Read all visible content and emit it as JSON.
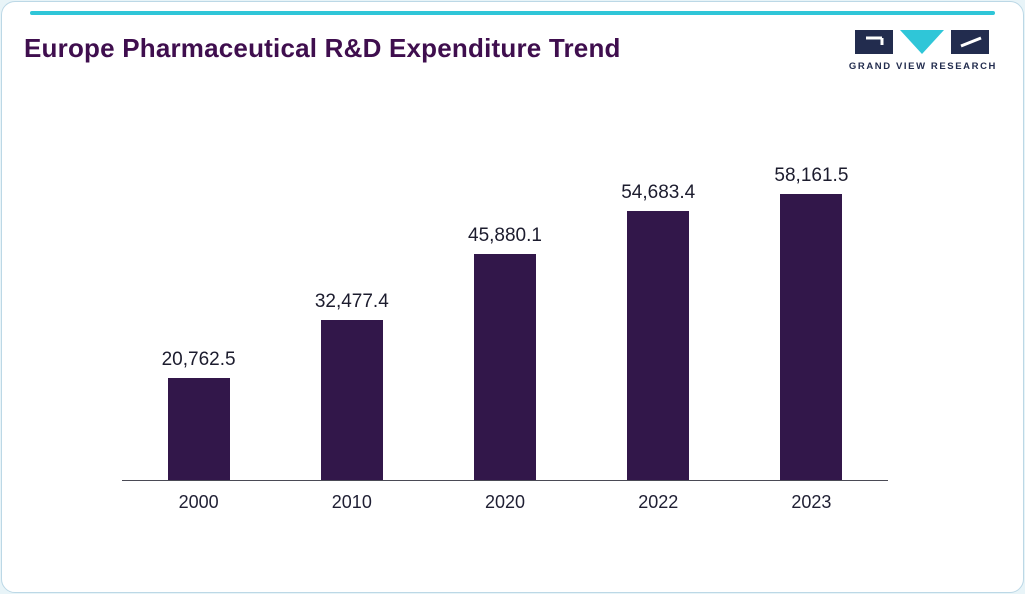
{
  "page": {
    "title": "Europe Pharmaceutical R&D Expenditure Trend"
  },
  "logo": {
    "text": "GRAND VIEW RESEARCH"
  },
  "colors": {
    "background": "#e8f4f8",
    "card": "#ffffff",
    "accent_top": "#2fc6d8",
    "title": "#3f0e4e",
    "bar": "#32174a",
    "axis_line": "#4a4a55",
    "logo_navy": "#222c4e",
    "logo_cyan": "#2fc6d8"
  },
  "chart_data": {
    "type": "bar",
    "title": "Europe Pharmaceutical R&D Expenditure Trend",
    "categories": [
      "2000",
      "2010",
      "2020",
      "2022",
      "2023"
    ],
    "values": [
      20762.5,
      32477.4,
      45880.1,
      54683.4,
      58161.5
    ],
    "value_labels": [
      "20,762.5",
      "32,477.4",
      "45,880.1",
      "54,683.4",
      "58,161.5"
    ],
    "xlabel": "",
    "ylabel": "",
    "ylim": [
      0,
      58161.5
    ],
    "grid": false,
    "legend": false,
    "bar_color": "#32174a"
  }
}
